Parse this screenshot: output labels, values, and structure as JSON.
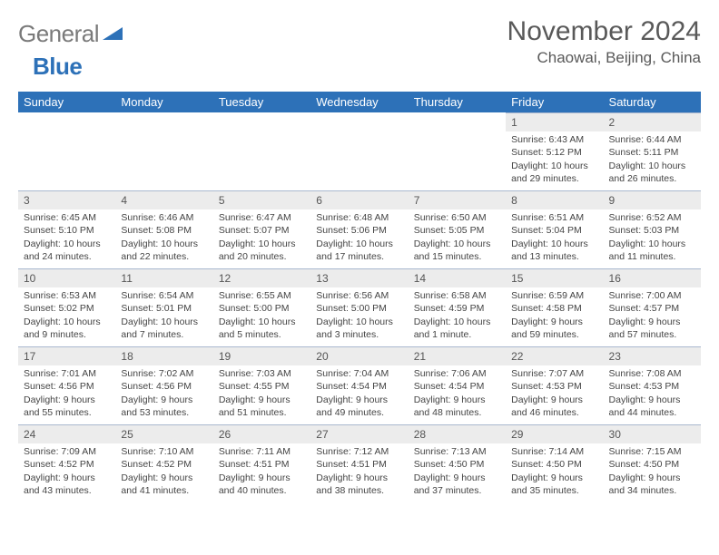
{
  "brand": {
    "name_gray": "General",
    "name_blue": "Blue"
  },
  "title": {
    "month": "November 2024",
    "location": "Chaowai, Beijing, China"
  },
  "colors": {
    "header_bg": "#2d71b8",
    "daynum_bg": "#ececec",
    "rule": "#a9b8cf"
  },
  "weekdays": [
    "Sunday",
    "Monday",
    "Tuesday",
    "Wednesday",
    "Thursday",
    "Friday",
    "Saturday"
  ],
  "weeks": [
    [
      null,
      null,
      null,
      null,
      null,
      {
        "n": "1",
        "sr": "Sunrise: 6:43 AM",
        "ss": "Sunset: 5:12 PM",
        "dl": "Daylight: 10 hours and 29 minutes."
      },
      {
        "n": "2",
        "sr": "Sunrise: 6:44 AM",
        "ss": "Sunset: 5:11 PM",
        "dl": "Daylight: 10 hours and 26 minutes."
      }
    ],
    [
      {
        "n": "3",
        "sr": "Sunrise: 6:45 AM",
        "ss": "Sunset: 5:10 PM",
        "dl": "Daylight: 10 hours and 24 minutes."
      },
      {
        "n": "4",
        "sr": "Sunrise: 6:46 AM",
        "ss": "Sunset: 5:08 PM",
        "dl": "Daylight: 10 hours and 22 minutes."
      },
      {
        "n": "5",
        "sr": "Sunrise: 6:47 AM",
        "ss": "Sunset: 5:07 PM",
        "dl": "Daylight: 10 hours and 20 minutes."
      },
      {
        "n": "6",
        "sr": "Sunrise: 6:48 AM",
        "ss": "Sunset: 5:06 PM",
        "dl": "Daylight: 10 hours and 17 minutes."
      },
      {
        "n": "7",
        "sr": "Sunrise: 6:50 AM",
        "ss": "Sunset: 5:05 PM",
        "dl": "Daylight: 10 hours and 15 minutes."
      },
      {
        "n": "8",
        "sr": "Sunrise: 6:51 AM",
        "ss": "Sunset: 5:04 PM",
        "dl": "Daylight: 10 hours and 13 minutes."
      },
      {
        "n": "9",
        "sr": "Sunrise: 6:52 AM",
        "ss": "Sunset: 5:03 PM",
        "dl": "Daylight: 10 hours and 11 minutes."
      }
    ],
    [
      {
        "n": "10",
        "sr": "Sunrise: 6:53 AM",
        "ss": "Sunset: 5:02 PM",
        "dl": "Daylight: 10 hours and 9 minutes."
      },
      {
        "n": "11",
        "sr": "Sunrise: 6:54 AM",
        "ss": "Sunset: 5:01 PM",
        "dl": "Daylight: 10 hours and 7 minutes."
      },
      {
        "n": "12",
        "sr": "Sunrise: 6:55 AM",
        "ss": "Sunset: 5:00 PM",
        "dl": "Daylight: 10 hours and 5 minutes."
      },
      {
        "n": "13",
        "sr": "Sunrise: 6:56 AM",
        "ss": "Sunset: 5:00 PM",
        "dl": "Daylight: 10 hours and 3 minutes."
      },
      {
        "n": "14",
        "sr": "Sunrise: 6:58 AM",
        "ss": "Sunset: 4:59 PM",
        "dl": "Daylight: 10 hours and 1 minute."
      },
      {
        "n": "15",
        "sr": "Sunrise: 6:59 AM",
        "ss": "Sunset: 4:58 PM",
        "dl": "Daylight: 9 hours and 59 minutes."
      },
      {
        "n": "16",
        "sr": "Sunrise: 7:00 AM",
        "ss": "Sunset: 4:57 PM",
        "dl": "Daylight: 9 hours and 57 minutes."
      }
    ],
    [
      {
        "n": "17",
        "sr": "Sunrise: 7:01 AM",
        "ss": "Sunset: 4:56 PM",
        "dl": "Daylight: 9 hours and 55 minutes."
      },
      {
        "n": "18",
        "sr": "Sunrise: 7:02 AM",
        "ss": "Sunset: 4:56 PM",
        "dl": "Daylight: 9 hours and 53 minutes."
      },
      {
        "n": "19",
        "sr": "Sunrise: 7:03 AM",
        "ss": "Sunset: 4:55 PM",
        "dl": "Daylight: 9 hours and 51 minutes."
      },
      {
        "n": "20",
        "sr": "Sunrise: 7:04 AM",
        "ss": "Sunset: 4:54 PM",
        "dl": "Daylight: 9 hours and 49 minutes."
      },
      {
        "n": "21",
        "sr": "Sunrise: 7:06 AM",
        "ss": "Sunset: 4:54 PM",
        "dl": "Daylight: 9 hours and 48 minutes."
      },
      {
        "n": "22",
        "sr": "Sunrise: 7:07 AM",
        "ss": "Sunset: 4:53 PM",
        "dl": "Daylight: 9 hours and 46 minutes."
      },
      {
        "n": "23",
        "sr": "Sunrise: 7:08 AM",
        "ss": "Sunset: 4:53 PM",
        "dl": "Daylight: 9 hours and 44 minutes."
      }
    ],
    [
      {
        "n": "24",
        "sr": "Sunrise: 7:09 AM",
        "ss": "Sunset: 4:52 PM",
        "dl": "Daylight: 9 hours and 43 minutes."
      },
      {
        "n": "25",
        "sr": "Sunrise: 7:10 AM",
        "ss": "Sunset: 4:52 PM",
        "dl": "Daylight: 9 hours and 41 minutes."
      },
      {
        "n": "26",
        "sr": "Sunrise: 7:11 AM",
        "ss": "Sunset: 4:51 PM",
        "dl": "Daylight: 9 hours and 40 minutes."
      },
      {
        "n": "27",
        "sr": "Sunrise: 7:12 AM",
        "ss": "Sunset: 4:51 PM",
        "dl": "Daylight: 9 hours and 38 minutes."
      },
      {
        "n": "28",
        "sr": "Sunrise: 7:13 AM",
        "ss": "Sunset: 4:50 PM",
        "dl": "Daylight: 9 hours and 37 minutes."
      },
      {
        "n": "29",
        "sr": "Sunrise: 7:14 AM",
        "ss": "Sunset: 4:50 PM",
        "dl": "Daylight: 9 hours and 35 minutes."
      },
      {
        "n": "30",
        "sr": "Sunrise: 7:15 AM",
        "ss": "Sunset: 4:50 PM",
        "dl": "Daylight: 9 hours and 34 minutes."
      }
    ]
  ]
}
